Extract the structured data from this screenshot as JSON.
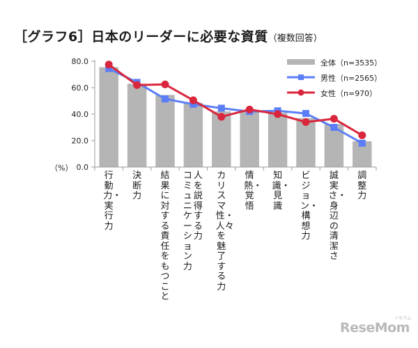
{
  "title_main": "［グラフ6］日本のリーダーに必要な資質",
  "title_sub": "（複数回答）",
  "unit_label": "（%）",
  "logo": {
    "text": "ReseMom",
    "ruby": "リセマム"
  },
  "colors": {
    "overall": "#b5b5b5",
    "male": "#5b7ef6",
    "female": "#d9263c"
  },
  "chart_data": {
    "type": "bar",
    "title": "［グラフ6］日本のリーダーに必要な資質（複数回答）",
    "ylabel": "（%）",
    "xlabel": "",
    "ylim": [
      0,
      80
    ],
    "yticks": [
      "0.0",
      "20.0",
      "40.0",
      "60.0",
      "80.0"
    ],
    "grid": false,
    "legend_position": "top-right",
    "categories": [
      "行動力・実行力",
      "決断力",
      "結果に対する責任をもつこと",
      "人を説得する力 コミュニケーション力",
      "カリスマ性・人々を魅了する力",
      "情熱・覚悟",
      "知識・見識",
      "ビジョン・構想力",
      "誠実さ・身辺の清潔さ",
      "調整力"
    ],
    "series": [
      {
        "name": "全体（n=3535）",
        "kind": "bar",
        "values": [
          75.5,
          63.0,
          54.5,
          48.5,
          42.0,
          42.0,
          41.0,
          37.0,
          32.5,
          19.5
        ]
      },
      {
        "name": "男性（n=2565）",
        "kind": "line",
        "values": [
          74.5,
          64.0,
          51.5,
          47.5,
          44.5,
          42.0,
          42.5,
          40.5,
          30.0,
          18.0
        ]
      },
      {
        "name": "女性（n=970）",
        "kind": "line",
        "values": [
          77.5,
          62.0,
          62.5,
          50.5,
          38.0,
          43.5,
          40.0,
          34.0,
          36.5,
          24.0
        ]
      }
    ]
  }
}
